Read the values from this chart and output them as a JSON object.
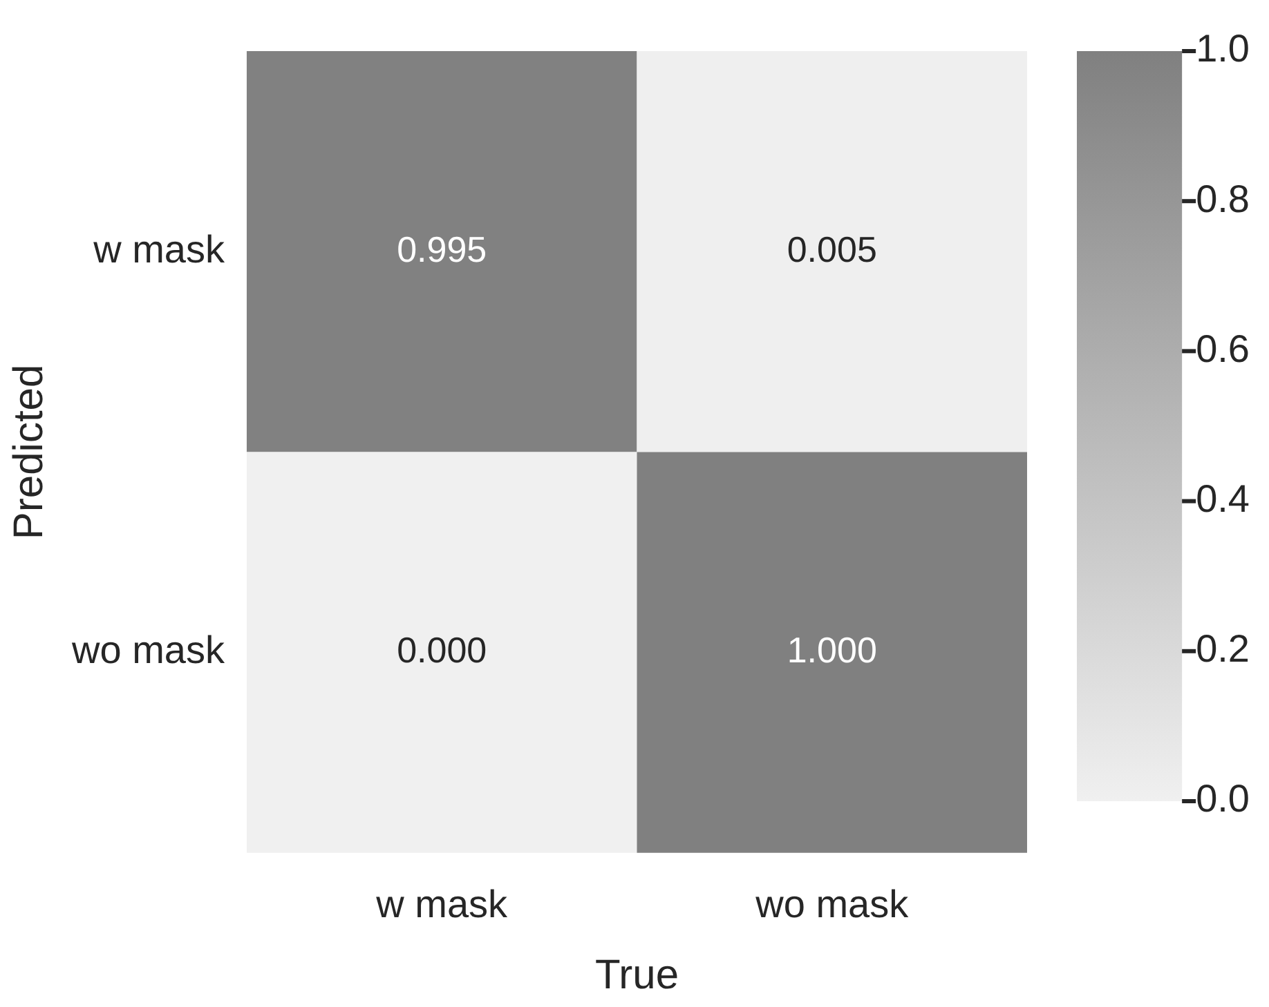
{
  "chart_data": {
    "type": "heatmap",
    "xlabel": "True",
    "ylabel": "Predicted",
    "categories": [
      "w mask",
      "wo mask"
    ],
    "y_categories": [
      "w mask",
      "wo mask"
    ],
    "cells": [
      [
        0.995,
        0.005
      ],
      [
        0.0,
        1.0
      ]
    ],
    "cell_labels": [
      [
        "0.995",
        "0.005"
      ],
      [
        "0.000",
        "1.000"
      ]
    ],
    "clim": [
      0,
      1
    ],
    "cticks": [
      {
        "value": 0,
        "label": "0.0"
      },
      0.2,
      0.4,
      0.6,
      0.8,
      {
        "value": 1,
        "label": "1.0"
      }
    ]
  }
}
